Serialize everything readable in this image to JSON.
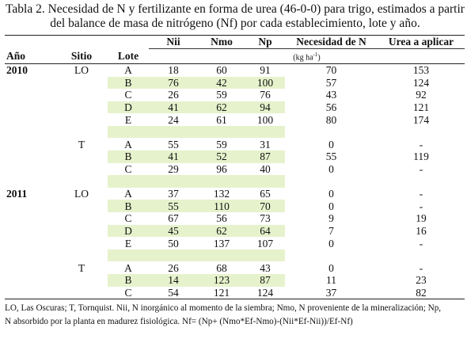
{
  "caption": {
    "line1": "Tabla 2. Necesidad de N y fertilizante en forma de urea (46-0-0) para trigo, estimados a partir",
    "line2": "del balance de masa de nitrógeno (Nf) por cada establecimiento, lote y año."
  },
  "headers": {
    "anio": "Año",
    "sitio": "Sitio",
    "lote": "Lote",
    "nii": "Nii",
    "nmo": "Nmo",
    "np": "Np",
    "necesidad": "Necesidad de N",
    "urea": "Urea a aplicar",
    "units_base": "(kg ha",
    "units_exp": "-1",
    "units_close": ")"
  },
  "rows": [
    {
      "anio": "2010",
      "sitio": "LO",
      "lote": "A",
      "nii": "18",
      "nmo": "60",
      "np": "91",
      "nec": "70",
      "urea": "153"
    },
    {
      "anio": "",
      "sitio": "",
      "lote": "B",
      "nii": "76",
      "nmo": "42",
      "np": "100",
      "nec": "57",
      "urea": "124"
    },
    {
      "anio": "",
      "sitio": "",
      "lote": "C",
      "nii": "26",
      "nmo": "59",
      "np": "76",
      "nec": "43",
      "urea": "92"
    },
    {
      "anio": "",
      "sitio": "",
      "lote": "D",
      "nii": "41",
      "nmo": "62",
      "np": "94",
      "nec": "56",
      "urea": "121"
    },
    {
      "anio": "",
      "sitio": "",
      "lote": "E",
      "nii": "24",
      "nmo": "61",
      "np": "100",
      "nec": "80",
      "urea": "174"
    },
    {
      "blank": true
    },
    {
      "anio": "",
      "sitio": "T",
      "lote": "A",
      "nii": "55",
      "nmo": "59",
      "np": "31",
      "nec": "0",
      "urea": "-"
    },
    {
      "anio": "",
      "sitio": "",
      "lote": "B",
      "nii": "41",
      "nmo": "52",
      "np": "87",
      "nec": "55",
      "urea": "119"
    },
    {
      "anio": "",
      "sitio": "",
      "lote": "C",
      "nii": "29",
      "nmo": "96",
      "np": "40",
      "nec": "0",
      "urea": "-"
    },
    {
      "blank": true
    },
    {
      "anio": "2011",
      "sitio": "LO",
      "lote": "A",
      "nii": "37",
      "nmo": "132",
      "np": "65",
      "nec": "0",
      "urea": "-"
    },
    {
      "anio": "",
      "sitio": "",
      "lote": "B",
      "nii": "55",
      "nmo": "110",
      "np": "70",
      "nec": "0",
      "urea": "-"
    },
    {
      "anio": "",
      "sitio": "",
      "lote": "C",
      "nii": "67",
      "nmo": "56",
      "np": "73",
      "nec": "9",
      "urea": "19"
    },
    {
      "anio": "",
      "sitio": "",
      "lote": "D",
      "nii": "45",
      "nmo": "62",
      "np": "64",
      "nec": "7",
      "urea": "16"
    },
    {
      "anio": "",
      "sitio": "",
      "lote": "E",
      "nii": "50",
      "nmo": "137",
      "np": "107",
      "nec": "0",
      "urea": "-"
    },
    {
      "blank": true
    },
    {
      "anio": "",
      "sitio": "T",
      "lote": "A",
      "nii": "26",
      "nmo": "68",
      "np": "43",
      "nec": "0",
      "urea": "-"
    },
    {
      "anio": "",
      "sitio": "",
      "lote": "B",
      "nii": "14",
      "nmo": "123",
      "np": "87",
      "nec": "11",
      "urea": "23"
    },
    {
      "anio": "",
      "sitio": "",
      "lote": "C",
      "nii": "54",
      "nmo": "121",
      "np": "124",
      "nec": "37",
      "urea": "82"
    }
  ],
  "footnote": {
    "line1": "LO, Las Oscuras; T, Tornquist. Nii, N inorgánico al momento de la siembra; Nmo, N proveniente de la mineralización; Np,",
    "line2": "N absorbido por la planta en madurez fisiológica. Nf= (Np+ (Nmo*Ef-Nmo)-(Nii*Ef-Nii))/Ef-Nf)"
  },
  "colors": {
    "shade": "#e6f2cc",
    "rule": "#222222"
  }
}
